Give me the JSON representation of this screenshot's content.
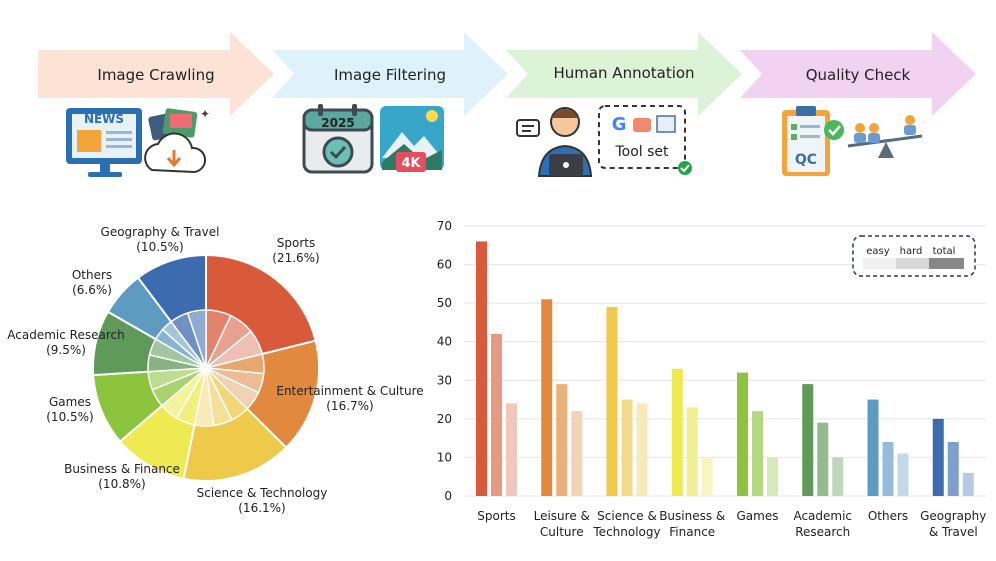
{
  "pipeline": {
    "stages": [
      {
        "label": "Image Crawling",
        "color": "#fde3d6"
      },
      {
        "label": "Image Filtering",
        "color": "#dff2fb"
      },
      {
        "label": "Human Annotation",
        "color": "#dcf3d8"
      },
      {
        "label": "Quality Check",
        "color": "#f1d2f1"
      }
    ],
    "icon_texts": {
      "news": "NEWS",
      "year": "2025",
      "resolution": "4K",
      "toolset": "Tool set",
      "qc": "QC"
    }
  },
  "chart_data": [
    {
      "type": "pie",
      "title": "",
      "slices": [
        {
          "label": "Sports",
          "percent": "(21.6%)",
          "value": 21.6,
          "color": "#d95a3b"
        },
        {
          "label": "Entertainment & Culture",
          "percent": "(16.7%)",
          "value": 16.7,
          "color": "#e0893f"
        },
        {
          "label": "Science & Technology",
          "percent": "(16.1%)",
          "value": 16.1,
          "color": "#efc94a"
        },
        {
          "label": "Business & Finance",
          "percent": "(10.8%)",
          "value": 10.8,
          "color": "#eeea52"
        },
        {
          "label": "Games",
          "percent": "(10.5%)",
          "value": 10.5,
          "color": "#8cc43e"
        },
        {
          "label": "Academic Research",
          "percent": "(9.5%)",
          "value": 9.5,
          "color": "#5f9a5a"
        },
        {
          "label": "Others",
          "percent": "(6.6%)",
          "value": 6.6,
          "color": "#5d9bc1"
        },
        {
          "label": "Geography & Travel",
          "percent": "(10.5%)",
          "value": 10.5,
          "color": "#3d6bb0"
        }
      ]
    },
    {
      "type": "bar",
      "categories": [
        [
          "Sports"
        ],
        [
          "Leisure &",
          "Culture"
        ],
        [
          "Science &",
          "Technology"
        ],
        [
          "Business &",
          "Finance"
        ],
        [
          "Games"
        ],
        [
          "Academic",
          "Research"
        ],
        [
          "Others"
        ],
        [
          "Geography",
          "& Travel"
        ]
      ],
      "series": [
        {
          "name": "easy",
          "values": [
            66,
            51,
            49,
            33,
            32,
            29,
            25,
            20
          ]
        },
        {
          "name": "hard",
          "values": [
            42,
            29,
            25,
            23,
            22,
            19,
            14,
            14
          ]
        },
        {
          "name": "total",
          "values": [
            24,
            22,
            24,
            10,
            10,
            10,
            11,
            6
          ]
        }
      ],
      "bar_colors": [
        [
          "#d95a3b",
          "#e69a86",
          "#f1c7bb"
        ],
        [
          "#e0893f",
          "#e9b07c",
          "#f2d3b5"
        ],
        [
          "#efc94a",
          "#f3da8a",
          "#f8e9ba"
        ],
        [
          "#eeea52",
          "#f2ef92",
          "#f7f5c2"
        ],
        [
          "#8cc43e",
          "#b3d87f",
          "#d5eab8"
        ],
        [
          "#5f9a5a",
          "#93bb8f",
          "#c0d7bd"
        ],
        [
          "#5d9bc1",
          "#95bdd6",
          "#c2d9e8"
        ],
        [
          "#3d6bb0",
          "#7f9fcf",
          "#b6c9e6"
        ]
      ],
      "yticks": [
        0,
        10,
        20,
        30,
        40,
        50,
        60,
        70
      ],
      "ylim": [
        0,
        70
      ],
      "legend": {
        "position": "top-right",
        "items": [
          "easy",
          "hard",
          "total"
        ]
      }
    }
  ]
}
